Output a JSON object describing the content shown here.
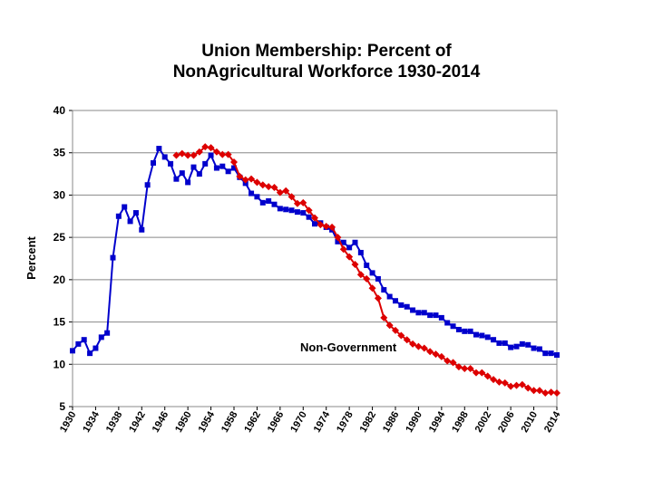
{
  "chart_data": {
    "type": "line",
    "title": [
      "Union Membership:  Percent of",
      "NonAgricultural Workforce 1930-2014"
    ],
    "ylabel": "Percent",
    "annotation": "Non-Government",
    "xlim": [
      1930,
      2014
    ],
    "xticks": [
      1930,
      1934,
      1938,
      1942,
      1946,
      1950,
      1954,
      1958,
      1962,
      1966,
      1970,
      1974,
      1978,
      1982,
      1986,
      1990,
      1994,
      1998,
      2002,
      2006,
      2010,
      2014
    ],
    "ylim": [
      5,
      40
    ],
    "yticks": [
      5,
      10,
      15,
      20,
      25,
      30,
      35,
      40
    ],
    "grid": true,
    "series": [
      {
        "color": "#0000cc",
        "marker": "square",
        "x": [
          1930,
          1931,
          1932,
          1933,
          1934,
          1935,
          1936,
          1937,
          1938,
          1939,
          1940,
          1941,
          1942,
          1943,
          1944,
          1945,
          1946,
          1947,
          1948,
          1949,
          1950,
          1951,
          1952,
          1953,
          1954,
          1955,
          1956,
          1957,
          1958,
          1959,
          1960,
          1961,
          1962,
          1963,
          1964,
          1965,
          1966,
          1967,
          1968,
          1969,
          1970,
          1971,
          1972,
          1973,
          1974,
          1975,
          1976,
          1977,
          1978,
          1979,
          1980,
          1981,
          1982,
          1983,
          1984,
          1985,
          1986,
          1987,
          1988,
          1989,
          1990,
          1991,
          1992,
          1993,
          1994,
          1995,
          1996,
          1997,
          1998,
          1999,
          2000,
          2001,
          2002,
          2003,
          2004,
          2005,
          2006,
          2007,
          2008,
          2009,
          2010,
          2011,
          2012,
          2013,
          2014
        ],
        "values": [
          11.6,
          12.4,
          12.9,
          11.3,
          11.9,
          13.2,
          13.7,
          22.6,
          27.5,
          28.6,
          26.9,
          27.9,
          25.9,
          31.2,
          33.8,
          35.5,
          34.5,
          33.7,
          31.9,
          32.6,
          31.5,
          33.3,
          32.5,
          33.7,
          34.7,
          33.2,
          33.4,
          32.8,
          33.2,
          32.1,
          31.4,
          30.2,
          29.8,
          29.1,
          29.3,
          28.9,
          28.4,
          28.3,
          28.2,
          28.0,
          27.9,
          27.4,
          26.6,
          26.7,
          26.2,
          25.9,
          24.5,
          24.4,
          23.8,
          24.4,
          23.2,
          21.7,
          20.8,
          20.1,
          18.8,
          18.0,
          17.5,
          17.0,
          16.8,
          16.4,
          16.1,
          16.1,
          15.8,
          15.8,
          15.5,
          14.9,
          14.5,
          14.1,
          13.9,
          13.9,
          13.5,
          13.4,
          13.2,
          12.9,
          12.5,
          12.5,
          12.0,
          12.1,
          12.4,
          12.3,
          11.9,
          11.8,
          11.3,
          11.3,
          11.1
        ]
      },
      {
        "color": "#dd0000",
        "marker": "diamond",
        "x": [
          1948,
          1949,
          1950,
          1951,
          1952,
          1953,
          1954,
          1955,
          1956,
          1957,
          1958,
          1959,
          1960,
          1961,
          1962,
          1963,
          1964,
          1965,
          1966,
          1967,
          1968,
          1969,
          1970,
          1971,
          1972,
          1973,
          1974,
          1975,
          1976,
          1977,
          1978,
          1979,
          1980,
          1981,
          1982,
          1983,
          1984,
          1985,
          1986,
          1987,
          1988,
          1989,
          1990,
          1991,
          1992,
          1993,
          1994,
          1995,
          1996,
          1997,
          1998,
          1999,
          2000,
          2001,
          2002,
          2003,
          2004,
          2005,
          2006,
          2007,
          2008,
          2009,
          2010,
          2011,
          2012,
          2013,
          2014
        ],
        "values": [
          34.7,
          34.9,
          34.7,
          34.7,
          35.1,
          35.7,
          35.6,
          35.1,
          34.8,
          34.8,
          33.9,
          32.2,
          31.8,
          31.9,
          31.5,
          31.2,
          31.0,
          30.9,
          30.3,
          30.5,
          29.8,
          29.0,
          29.1,
          28.2,
          27.3,
          26.5,
          26.3,
          26.2,
          25.0,
          23.6,
          22.7,
          21.8,
          20.6,
          20.1,
          19.0,
          17.8,
          15.5,
          14.6,
          14.0,
          13.4,
          12.9,
          12.4,
          12.1,
          11.9,
          11.5,
          11.2,
          10.9,
          10.4,
          10.2,
          9.7,
          9.5,
          9.5,
          9.0,
          9.0,
          8.6,
          8.2,
          7.9,
          7.8,
          7.4,
          7.5,
          7.6,
          7.2,
          6.9,
          6.9,
          6.6,
          6.7,
          6.6
        ]
      }
    ]
  }
}
